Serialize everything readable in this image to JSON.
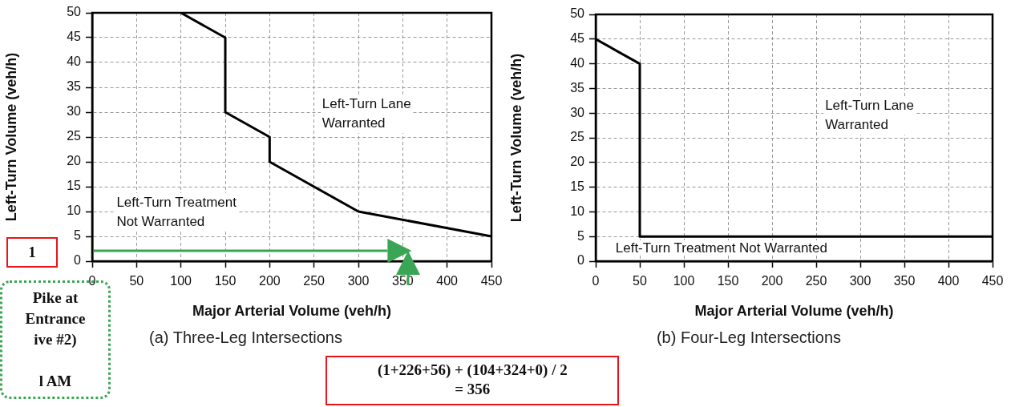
{
  "chart_data": [
    {
      "type": "line",
      "title": "(a) Three-Leg Intersections",
      "xlabel": "Major Arterial Volume (veh/h)",
      "ylabel": "Left-Turn Volume (veh/h)",
      "series": [
        {
          "color": "#000000",
          "x": [
            100,
            150,
            150,
            200,
            200,
            300,
            450
          ],
          "values": [
            50,
            45,
            30,
            25,
            20,
            10,
            5
          ]
        }
      ],
      "xlim": [
        0,
        450
      ],
      "xticks": [
        0,
        50,
        100,
        150,
        200,
        250,
        300,
        350,
        400,
        450
      ],
      "ylim": [
        0,
        50
      ],
      "yticks": [
        0,
        5,
        10,
        15,
        20,
        25,
        30,
        35,
        40,
        45,
        50
      ],
      "grid": true,
      "annotations": [
        "Left-Turn Lane\nWarranted",
        "Left-Turn Treatment\nNot Warranted",
        "1",
        "(1+226+56) + (104+324+0) / 2\n= 356",
        "Pike at\nEntrance\nive #2)\n\nl AM"
      ]
    },
    {
      "type": "line",
      "title": "(b) Four-Leg Intersections",
      "xlabel": "Major Arterial Volume (veh/h)",
      "ylabel": "Left-Turn Volume (veh/h)",
      "series": [
        {
          "color": "#000000",
          "x": [
            0,
            50,
            50,
            450
          ],
          "values": [
            45,
            40,
            5,
            5
          ]
        }
      ],
      "xlim": [
        0,
        450
      ],
      "xticks": [
        0,
        50,
        100,
        150,
        200,
        250,
        300,
        350,
        400,
        450
      ],
      "ylim": [
        0,
        50
      ],
      "yticks": [
        0,
        5,
        10,
        15,
        20,
        25,
        30,
        35,
        40,
        45,
        50
      ],
      "grid": true,
      "annotations": [
        "Left-Turn Lane\nWarranted",
        "Left-Turn Treatment Not Warranted"
      ]
    }
  ]
}
